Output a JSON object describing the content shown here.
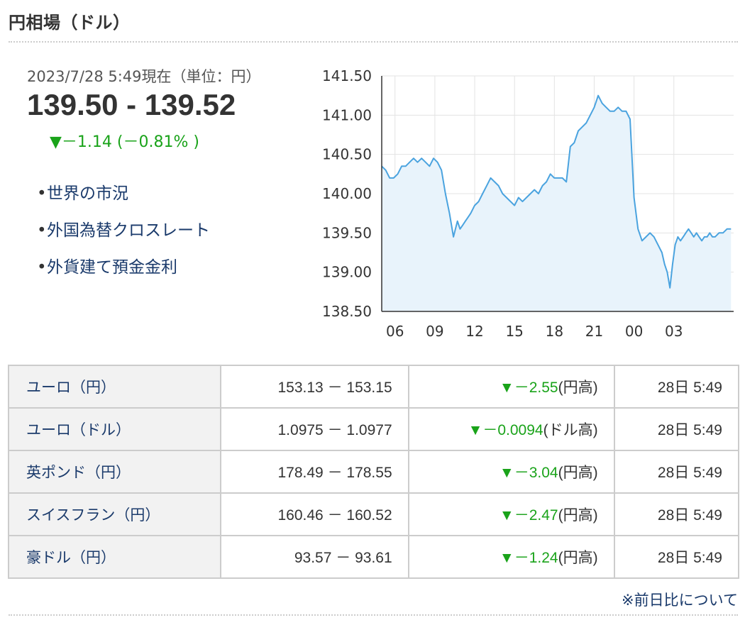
{
  "header": {
    "title": "円相場（ドル）"
  },
  "quote": {
    "datetime": "2023/7/28 5:49現在（単位：円）",
    "price": "139.50 - 139.52",
    "change": "▼－1.14 (－0.81% )",
    "change_color": "#1aa31a"
  },
  "links": [
    {
      "label": "世界の市況"
    },
    {
      "label": "外国為替クロスレート"
    },
    {
      "label": "外貨建て預金金利"
    }
  ],
  "chart_data": {
    "type": "area",
    "title": "",
    "xlabel": "",
    "ylabel": "",
    "ylim": [
      138.5,
      141.5
    ],
    "yticks": [
      "141.50",
      "141.00",
      "140.50",
      "140.00",
      "139.50",
      "139.00",
      "138.50"
    ],
    "xticks": [
      "06",
      "09",
      "12",
      "15",
      "18",
      "21",
      "00",
      "03"
    ],
    "grid": true,
    "line_color": "#4aa3df",
    "fill_color": "#e8f3fb",
    "series": [
      {
        "x": [
          5.0,
          5.3,
          5.6,
          5.9,
          6.2,
          6.5,
          6.8,
          7.1,
          7.4,
          7.7,
          8.0,
          8.3,
          8.6,
          8.9,
          9.2,
          9.5,
          9.8,
          10.1,
          10.4,
          10.7,
          10.9,
          11.1,
          11.3,
          11.5,
          11.7,
          12.0,
          12.3,
          12.6,
          12.9,
          13.2,
          13.5,
          13.8,
          14.1,
          14.4,
          14.7,
          15.0,
          15.3,
          15.6,
          15.9,
          16.2,
          16.5,
          16.8,
          17.1,
          17.4,
          17.7,
          18.0,
          18.3,
          18.6,
          18.9,
          19.2,
          19.5,
          19.8,
          20.1,
          20.4,
          20.7,
          21.0,
          21.3,
          21.6,
          21.9,
          22.2,
          22.5,
          22.8,
          23.1,
          23.4,
          23.7,
          24.0,
          24.3,
          24.6,
          24.9,
          25.2,
          25.5,
          25.8,
          26.1,
          26.3,
          26.5,
          26.7,
          26.9,
          27.1,
          27.3,
          27.5,
          27.7,
          27.9,
          28.1,
          28.3,
          28.5,
          28.7,
          28.9,
          29.1,
          29.3,
          29.5,
          29.7,
          29.9,
          30.1,
          30.4,
          30.7,
          31.0,
          31.3
        ],
        "y": [
          140.35,
          140.3,
          140.2,
          140.2,
          140.25,
          140.35,
          140.35,
          140.4,
          140.45,
          140.4,
          140.45,
          140.4,
          140.35,
          140.45,
          140.4,
          140.3,
          140.0,
          139.75,
          139.45,
          139.65,
          139.55,
          139.6,
          139.65,
          139.7,
          139.75,
          139.85,
          139.9,
          140.0,
          140.1,
          140.2,
          140.15,
          140.1,
          140.0,
          139.95,
          139.9,
          139.85,
          139.95,
          139.9,
          139.95,
          140.0,
          140.05,
          140.0,
          140.1,
          140.15,
          140.25,
          140.2,
          140.2,
          140.2,
          140.15,
          140.6,
          140.65,
          140.8,
          140.85,
          140.9,
          141.0,
          141.1,
          141.25,
          141.15,
          141.1,
          141.05,
          141.05,
          141.1,
          141.05,
          141.05,
          140.95,
          139.95,
          139.55,
          139.4,
          139.45,
          139.5,
          139.45,
          139.35,
          139.25,
          139.1,
          139.0,
          138.8,
          139.1,
          139.35,
          139.45,
          139.4,
          139.45,
          139.5,
          139.55,
          139.5,
          139.45,
          139.5,
          139.45,
          139.4,
          139.45,
          139.45,
          139.5,
          139.45,
          139.45,
          139.5,
          139.5,
          139.55,
          139.55
        ]
      }
    ]
  },
  "table": {
    "rows": [
      {
        "name": "ユーロ（円）",
        "price": "153.13 － 153.15",
        "arrow": "▼",
        "diff": "－2.55",
        "suffix": "(円高)",
        "time": "28日 5:49"
      },
      {
        "name": "ユーロ（ドル）",
        "price": "1.0975 － 1.0977",
        "arrow": "▼",
        "diff": "－0.0094",
        "suffix": "(ドル高)",
        "time": "28日 5:49"
      },
      {
        "name": "英ポンド（円）",
        "price": "178.49 － 178.55",
        "arrow": "▼",
        "diff": "－3.04",
        "suffix": "(円高)",
        "time": "28日 5:49"
      },
      {
        "name": "スイスフラン（円）",
        "price": "160.46 － 160.52",
        "arrow": "▼",
        "diff": "－2.47",
        "suffix": "(円高)",
        "time": "28日 5:49"
      },
      {
        "name": "豪ドル（円）",
        "price": "93.57 － 93.61",
        "arrow": "▼",
        "diff": "－1.24",
        "suffix": "(円高)",
        "time": "28日 5:49"
      }
    ]
  },
  "footnote": "※前日比について"
}
